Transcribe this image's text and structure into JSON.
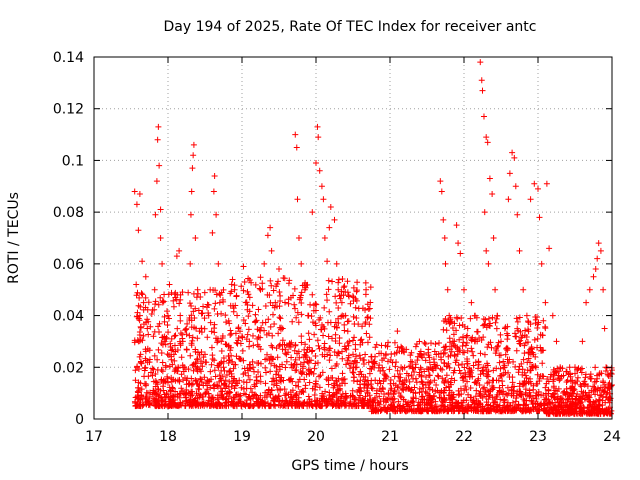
{
  "chart_data": {
    "type": "scatter",
    "title": "Day 194 of 2025, Rate Of TEC Index for receiver antc",
    "xlabel": "GPS time / hours",
    "ylabel": "ROTI / TECUs",
    "xlim": [
      17,
      24
    ],
    "ylim": [
      0,
      0.14
    ],
    "xticks": [
      17,
      18,
      19,
      20,
      21,
      22,
      23,
      24
    ],
    "yticks": [
      0,
      0.02,
      0.04,
      0.06,
      0.08,
      0.1,
      0.12,
      0.14
    ],
    "ytick_labels": [
      "0",
      "0.02",
      "0.04",
      "0.06",
      "0.08",
      "0.1",
      "0.12",
      "0.14"
    ],
    "grid": true,
    "marker": "+",
    "color": "#ff0000",
    "series": [
      {
        "name": "ROTI",
        "points": [
          [
            17.55,
            0.088
          ],
          [
            17.58,
            0.083
          ],
          [
            17.6,
            0.073
          ],
          [
            17.62,
            0.087
          ],
          [
            17.65,
            0.061
          ],
          [
            17.57,
            0.052
          ],
          [
            17.62,
            0.04
          ],
          [
            17.6,
            0.03
          ],
          [
            17.58,
            0.02
          ],
          [
            17.56,
            0.015
          ],
          [
            17.6,
            0.012
          ],
          [
            17.63,
            0.025
          ],
          [
            17.67,
            0.045
          ],
          [
            17.7,
            0.055
          ],
          [
            17.72,
            0.035
          ],
          [
            17.75,
            0.022
          ],
          [
            17.77,
            0.018
          ],
          [
            17.8,
            0.011
          ],
          [
            17.82,
            0.05
          ],
          [
            17.83,
            0.079
          ],
          [
            17.85,
            0.092
          ],
          [
            17.86,
            0.108
          ],
          [
            17.87,
            0.113
          ],
          [
            17.88,
            0.098
          ],
          [
            17.9,
            0.081
          ],
          [
            17.9,
            0.07
          ],
          [
            17.92,
            0.06
          ],
          [
            17.93,
            0.045
          ],
          [
            17.95,
            0.03
          ],
          [
            17.97,
            0.02
          ],
          [
            17.98,
            0.01
          ],
          [
            18.0,
            0.04
          ],
          [
            18.02,
            0.052
          ],
          [
            18.05,
            0.031
          ],
          [
            18.08,
            0.025
          ],
          [
            18.1,
            0.047
          ],
          [
            18.12,
            0.063
          ],
          [
            18.15,
            0.065
          ],
          [
            18.17,
            0.048
          ],
          [
            18.2,
            0.03
          ],
          [
            18.22,
            0.02
          ],
          [
            18.25,
            0.015
          ],
          [
            18.28,
            0.01
          ],
          [
            18.3,
            0.06
          ],
          [
            18.31,
            0.079
          ],
          [
            18.32,
            0.088
          ],
          [
            18.33,
            0.097
          ],
          [
            18.34,
            0.102
          ],
          [
            18.35,
            0.106
          ],
          [
            18.37,
            0.07
          ],
          [
            18.4,
            0.05
          ],
          [
            18.45,
            0.035
          ],
          [
            18.5,
            0.025
          ],
          [
            18.55,
            0.04
          ],
          [
            18.57,
            0.05
          ],
          [
            18.6,
            0.072
          ],
          [
            18.62,
            0.088
          ],
          [
            18.63,
            0.094
          ],
          [
            18.65,
            0.079
          ],
          [
            18.68,
            0.06
          ],
          [
            18.7,
            0.045
          ],
          [
            18.72,
            0.03
          ],
          [
            18.75,
            0.02
          ],
          [
            18.78,
            0.015
          ],
          [
            18.8,
            0.01
          ],
          [
            18.9,
            0.05
          ],
          [
            18.95,
            0.035
          ],
          [
            19.0,
            0.032
          ],
          [
            19.02,
            0.059
          ],
          [
            19.05,
            0.045
          ],
          [
            19.1,
            0.03
          ],
          [
            19.15,
            0.02
          ],
          [
            19.2,
            0.015
          ],
          [
            19.25,
            0.05
          ],
          [
            19.3,
            0.06
          ],
          [
            19.35,
            0.071
          ],
          [
            19.38,
            0.074
          ],
          [
            19.4,
            0.065
          ],
          [
            19.45,
            0.045
          ],
          [
            19.5,
            0.058
          ],
          [
            19.55,
            0.035
          ],
          [
            19.6,
            0.025
          ],
          [
            19.65,
            0.015
          ],
          [
            19.72,
            0.11
          ],
          [
            19.74,
            0.105
          ],
          [
            19.75,
            0.085
          ],
          [
            19.77,
            0.07
          ],
          [
            19.8,
            0.06
          ],
          [
            19.85,
            0.05
          ],
          [
            19.9,
            0.04
          ],
          [
            19.95,
            0.08
          ],
          [
            20.0,
            0.099
          ],
          [
            20.02,
            0.113
          ],
          [
            20.03,
            0.109
          ],
          [
            20.05,
            0.096
          ],
          [
            20.08,
            0.09
          ],
          [
            20.1,
            0.085
          ],
          [
            20.12,
            0.07
          ],
          [
            20.15,
            0.061
          ],
          [
            20.18,
            0.074
          ],
          [
            20.2,
            0.082
          ],
          [
            20.25,
            0.077
          ],
          [
            20.28,
            0.06
          ],
          [
            20.3,
            0.05
          ],
          [
            20.35,
            0.045
          ],
          [
            20.4,
            0.04
          ],
          [
            20.45,
            0.03
          ],
          [
            20.5,
            0.025
          ],
          [
            20.55,
            0.02
          ],
          [
            20.6,
            0.015
          ],
          [
            20.65,
            0.012
          ],
          [
            20.7,
            0.01
          ],
          [
            20.8,
            0.015
          ],
          [
            20.9,
            0.012
          ],
          [
            21.0,
            0.008
          ],
          [
            21.05,
            0.01
          ],
          [
            21.1,
            0.034
          ],
          [
            21.15,
            0.02
          ],
          [
            21.2,
            0.015
          ],
          [
            21.25,
            0.012
          ],
          [
            21.3,
            0.022
          ],
          [
            21.35,
            0.028
          ],
          [
            21.4,
            0.018
          ],
          [
            21.45,
            0.012
          ],
          [
            21.5,
            0.01
          ],
          [
            21.55,
            0.02
          ],
          [
            21.6,
            0.015
          ],
          [
            21.68,
            0.092
          ],
          [
            21.7,
            0.088
          ],
          [
            21.72,
            0.077
          ],
          [
            21.74,
            0.07
          ],
          [
            21.75,
            0.06
          ],
          [
            21.78,
            0.05
          ],
          [
            21.8,
            0.04
          ],
          [
            21.85,
            0.03
          ],
          [
            21.9,
            0.075
          ],
          [
            21.92,
            0.068
          ],
          [
            21.95,
            0.064
          ],
          [
            22.0,
            0.05
          ],
          [
            22.05,
            0.035
          ],
          [
            22.1,
            0.045
          ],
          [
            22.15,
            0.03
          ],
          [
            22.2,
            0.021
          ],
          [
            22.22,
            0.138
          ],
          [
            22.24,
            0.131
          ],
          [
            22.25,
            0.127
          ],
          [
            22.27,
            0.117
          ],
          [
            22.3,
            0.109
          ],
          [
            22.32,
            0.107
          ],
          [
            22.28,
            0.08
          ],
          [
            22.3,
            0.065
          ],
          [
            22.33,
            0.06
          ],
          [
            22.35,
            0.093
          ],
          [
            22.38,
            0.087
          ],
          [
            22.4,
            0.07
          ],
          [
            22.42,
            0.05
          ],
          [
            22.45,
            0.04
          ],
          [
            22.5,
            0.03
          ],
          [
            22.55,
            0.02
          ],
          [
            22.6,
            0.085
          ],
          [
            22.62,
            0.095
          ],
          [
            22.65,
            0.103
          ],
          [
            22.68,
            0.101
          ],
          [
            22.7,
            0.09
          ],
          [
            22.72,
            0.079
          ],
          [
            22.75,
            0.065
          ],
          [
            22.8,
            0.05
          ],
          [
            22.85,
            0.04
          ],
          [
            22.9,
            0.085
          ],
          [
            22.95,
            0.091
          ],
          [
            23.0,
            0.089
          ],
          [
            23.02,
            0.078
          ],
          [
            23.05,
            0.06
          ],
          [
            23.1,
            0.045
          ],
          [
            23.12,
            0.091
          ],
          [
            23.15,
            0.066
          ],
          [
            23.2,
            0.04
          ],
          [
            23.25,
            0.03
          ],
          [
            23.3,
            0.02
          ],
          [
            23.4,
            0.015
          ],
          [
            23.5,
            0.02
          ],
          [
            23.6,
            0.03
          ],
          [
            23.65,
            0.045
          ],
          [
            23.7,
            0.05
          ],
          [
            23.75,
            0.055
          ],
          [
            23.78,
            0.058
          ],
          [
            23.8,
            0.062
          ],
          [
            23.82,
            0.068
          ],
          [
            23.85,
            0.065
          ],
          [
            23.88,
            0.05
          ],
          [
            23.9,
            0.035
          ],
          [
            23.92,
            0.02
          ],
          [
            23.95,
            0.012
          ],
          [
            23.98,
            0.008
          ]
        ]
      }
    ],
    "dense_bands": [
      {
        "x_from": 17.55,
        "x_to": 18.85,
        "y_from": 0.005,
        "y_to": 0.05,
        "count": 650
      },
      {
        "x_from": 18.85,
        "x_to": 20.75,
        "y_from": 0.005,
        "y_to": 0.055,
        "count": 900
      },
      {
        "x_from": 20.75,
        "x_to": 21.7,
        "y_from": 0.003,
        "y_to": 0.03,
        "count": 400
      },
      {
        "x_from": 21.7,
        "x_to": 23.1,
        "y_from": 0.003,
        "y_to": 0.04,
        "count": 700
      },
      {
        "x_from": 23.1,
        "x_to": 24.0,
        "y_from": 0.002,
        "y_to": 0.02,
        "count": 450
      }
    ]
  }
}
